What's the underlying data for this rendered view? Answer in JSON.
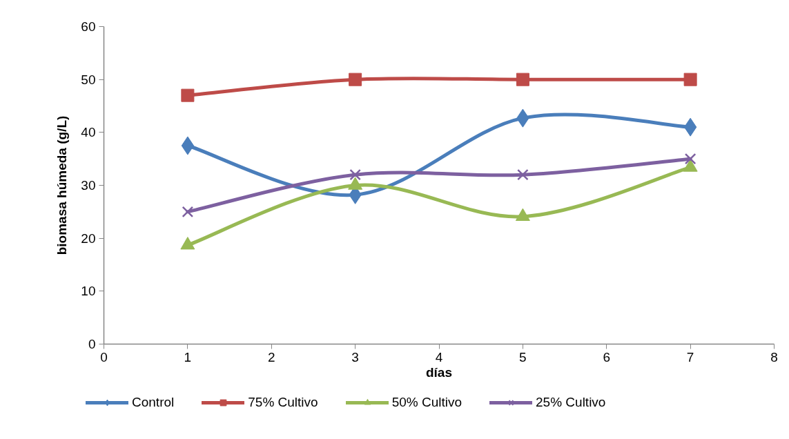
{
  "chart_data": {
    "type": "line",
    "xlabel": "días",
    "ylabel": "biomasa húmeda (g/L)",
    "x": [
      1,
      3,
      5,
      7
    ],
    "xlim": [
      0,
      8
    ],
    "xticks": [
      0,
      1,
      2,
      3,
      4,
      5,
      6,
      7,
      8
    ],
    "ylim": [
      0,
      60
    ],
    "yticks": [
      0,
      10,
      20,
      30,
      40,
      50,
      60
    ],
    "legend": "bottom",
    "line_style": "solid",
    "series": [
      {
        "name": "Control",
        "color": "#4a7ebb",
        "marker": "diamond",
        "values": [
          37.5,
          28.2,
          42.7,
          41
        ]
      },
      {
        "name": "75% Cultivo",
        "color": "#be4b48",
        "marker": "square",
        "values": [
          47,
          50,
          50,
          50
        ]
      },
      {
        "name": "50% Cultivo",
        "color": "#98b954",
        "marker": "triangle",
        "values": [
          18.7,
          30,
          24.1,
          33.4
        ]
      },
      {
        "name": "25% Cultivo",
        "color": "#7d60a0",
        "marker": "cross",
        "values": [
          25,
          32,
          32,
          35
        ]
      }
    ]
  }
}
